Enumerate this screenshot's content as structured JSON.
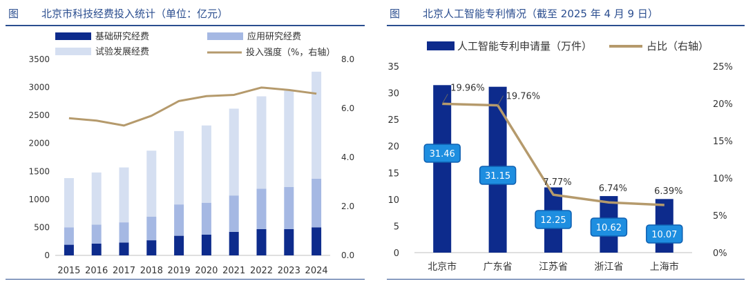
{
  "left_panel": {
    "figure_label": "图",
    "title": "北京市科技经费投入统计（单位：亿元）"
  },
  "right_panel": {
    "figure_label": "图",
    "title": "北京人工智能专利情况（截至 2025 年 4 月 9 日）"
  },
  "chart_data": [
    {
      "type": "bar",
      "stacked": true,
      "categories": [
        "2015",
        "2016",
        "2017",
        "2018",
        "2019",
        "2020",
        "2021",
        "2022",
        "2023",
        "2024"
      ],
      "series": [
        {
          "name": "基础研究经费",
          "color": "#0d2b8c",
          "values": [
            190,
            210,
            230,
            270,
            350,
            370,
            420,
            470,
            470,
            500
          ]
        },
        {
          "name": "应用研究经费",
          "color": "#a5b8e3",
          "values": [
            310,
            340,
            360,
            420,
            560,
            570,
            650,
            720,
            750,
            870
          ]
        },
        {
          "name": "试验发展经费",
          "color": "#d5dff1",
          "values": [
            880,
            930,
            980,
            1180,
            1310,
            1380,
            1550,
            1650,
            1720,
            1910
          ]
        }
      ],
      "line_series": {
        "name": "投入强度（%，右轴）",
        "color": "#b59a6c",
        "values": [
          5.6,
          5.5,
          5.3,
          5.7,
          6.3,
          6.5,
          6.55,
          6.85,
          6.75,
          6.6
        ]
      },
      "y_left": {
        "min": 0,
        "max": 3500,
        "ticks": [
          "0",
          "500",
          "1000",
          "1500",
          "2000",
          "2500",
          "3000",
          "3500"
        ]
      },
      "y_right": {
        "min": 0,
        "max": 8,
        "ticks": [
          "0.0",
          "2.0",
          "4.0",
          "6.0",
          "8.0"
        ]
      },
      "legend_position": "top"
    },
    {
      "type": "bar",
      "categories": [
        "北京市",
        "广东省",
        "江苏省",
        "浙江省",
        "上海市"
      ],
      "series": [
        {
          "name": "人工智能专利申请量（万件）",
          "color": "#0d2b8c",
          "values": [
            31.46,
            31.15,
            12.25,
            10.62,
            10.07
          ],
          "labels": [
            "31.46",
            "31.15",
            "12.25",
            "10.62",
            "10.07"
          ]
        }
      ],
      "line_series": {
        "name": "占比（右轴）",
        "color": "#b59a6c",
        "values": [
          19.96,
          19.76,
          7.77,
          6.74,
          6.39
        ],
        "labels": [
          "19.96%",
          "19.76%",
          "7.77%",
          "6.74%",
          "6.39%"
        ]
      },
      "y_left": {
        "min": 0,
        "max": 35,
        "ticks": [
          "0",
          "5",
          "10",
          "15",
          "20",
          "25",
          "30",
          "35"
        ]
      },
      "y_right": {
        "min": 0,
        "max": 25,
        "ticks": [
          "0%",
          "5%",
          "10%",
          "15%",
          "20%",
          "25%"
        ]
      },
      "legend_position": "top"
    }
  ]
}
